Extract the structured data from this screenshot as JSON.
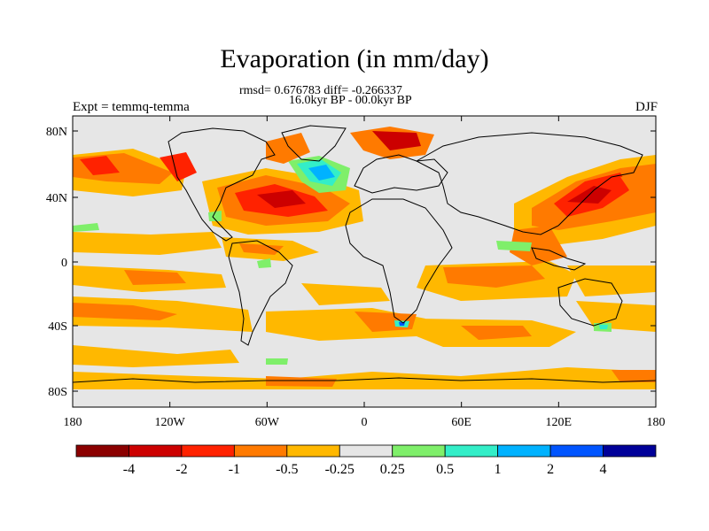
{
  "title": "Evaporation (in mm/day)",
  "stats": "rmsd= 0.676783 diff= -0.266337",
  "period": "16.0kyr BP - 00.0kyr BP",
  "experiment": "Expt = temmq-temma",
  "season": "DJF",
  "map": {
    "lat_ticks": [
      "80N",
      "40N",
      "0",
      "40S",
      "80S"
    ],
    "lon_ticks": [
      "180",
      "120W",
      "60W",
      "0",
      "60E",
      "120E",
      "180"
    ],
    "background_color": "#e6e6e6",
    "land_outline_color": "#000000"
  },
  "colorbar": {
    "colors": [
      "#8b0000",
      "#cc0000",
      "#ff2200",
      "#ff7a00",
      "#ffb800",
      "#e6e6e6",
      "#7fef6a",
      "#33eec8",
      "#00b2ff",
      "#0055ff",
      "#000099"
    ],
    "labels": [
      "-4",
      "-2",
      "-1",
      "-0.5",
      "-0.25",
      "0.25",
      "0.5",
      "1",
      "2",
      "4"
    ]
  }
}
